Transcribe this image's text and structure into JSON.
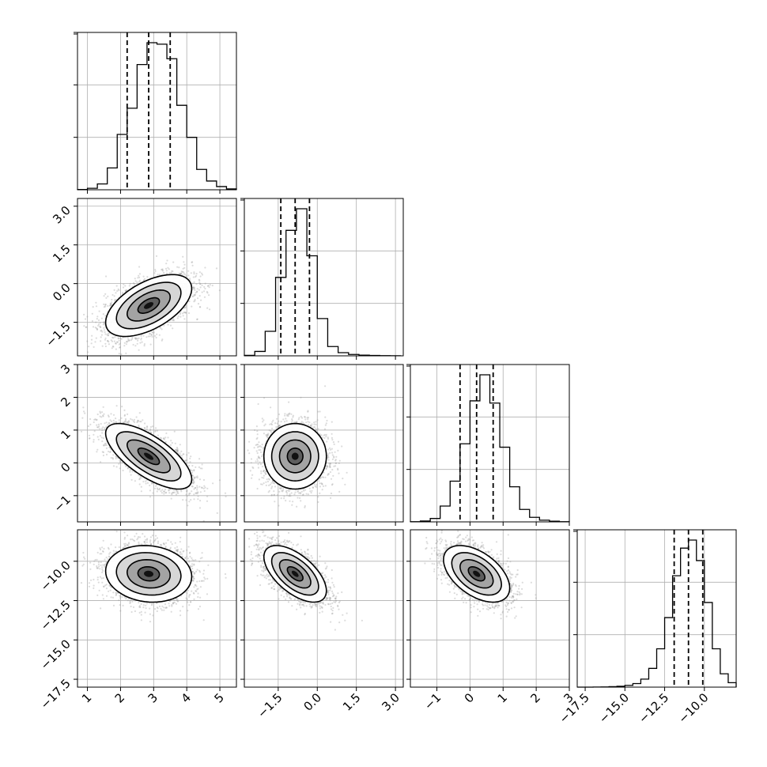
{
  "chart_data": {
    "type": "corner",
    "title": "",
    "n_params": 4,
    "params": [
      {
        "label": "",
        "lim": [
          0.7,
          5.5
        ],
        "ticks": [
          1,
          2,
          3,
          4,
          5
        ],
        "tick_labels": [
          "1",
          "2",
          "3",
          "4",
          "5"
        ],
        "quantiles": [
          2.2,
          2.85,
          3.5
        ],
        "hist_bins": [
          0.7,
          1.0,
          1.3,
          1.6,
          1.9,
          2.2,
          2.5,
          2.8,
          3.1,
          3.4,
          3.7,
          4.0,
          4.3,
          4.6,
          4.9,
          5.2,
          5.5
        ],
        "hist_counts": [
          2,
          10,
          40,
          150,
          380,
          560,
          860,
          1010,
          1000,
          900,
          580,
          360,
          140,
          60,
          22,
          6
        ]
      },
      {
        "label": "",
        "lim": [
          -2.8,
          3.3
        ],
        "ticks": [
          -1.5,
          0.0,
          1.5,
          3.0
        ],
        "tick_labels": [
          "−1.5",
          "0.0",
          "1.5",
          "3.0"
        ],
        "quantiles": [
          -1.4,
          -0.85,
          -0.3
        ],
        "hist_bins": [
          -2.8,
          -2.4,
          -2.0,
          -1.6,
          -1.2,
          -0.8,
          -0.4,
          0.0,
          0.4,
          0.8,
          1.2,
          1.6,
          2.0,
          2.4,
          2.8,
          3.2
        ],
        "hist_counts": [
          5,
          45,
          250,
          800,
          1280,
          1500,
          1020,
          380,
          95,
          32,
          14,
          7,
          4,
          2,
          1
        ]
      },
      {
        "label": "",
        "lim": [
          -1.8,
          3.0
        ],
        "ticks": [
          -1,
          0,
          1,
          2,
          3
        ],
        "tick_labels": [
          "−1",
          "0",
          "1",
          "2",
          "3"
        ],
        "quantiles": [
          -0.3,
          0.2,
          0.7
        ],
        "hist_bins": [
          -1.8,
          -1.5,
          -1.2,
          -0.9,
          -0.6,
          -0.3,
          0.0,
          0.3,
          0.6,
          0.9,
          1.2,
          1.5,
          1.8,
          2.1,
          2.4,
          2.7,
          3.0
        ],
        "hist_counts": [
          2,
          8,
          30,
          140,
          360,
          690,
          1070,
          1300,
          1050,
          660,
          310,
          110,
          40,
          15,
          6,
          2
        ]
      },
      {
        "label": "",
        "lim": [
          -18.0,
          -8.0
        ],
        "ticks": [
          -17.5,
          -15.0,
          -12.5,
          -10.0
        ],
        "tick_labels": [
          "−17.5",
          "−15.0",
          "−12.5",
          "−10.0"
        ],
        "quantiles": [
          -11.9,
          -11.0,
          -10.1
        ],
        "hist_bins": [
          -18.0,
          -17.5,
          -17.0,
          -16.5,
          -16.0,
          -15.5,
          -15.0,
          -14.5,
          -14.0,
          -13.5,
          -13.0,
          -12.5,
          -12.0,
          -11.5,
          -11.0,
          -10.5,
          -10.0,
          -9.5,
          -9.0,
          -8.5,
          -8.0
        ],
        "hist_counts": [
          0,
          0,
          1,
          2,
          5,
          10,
          20,
          40,
          90,
          210,
          430,
          780,
          1250,
          1560,
          1650,
          1420,
          950,
          430,
          150,
          50
        ]
      }
    ],
    "left_tick_rows": [
      {
        "row": 1,
        "ticks": [
          -1.5,
          0.0,
          1.5,
          3.0
        ],
        "tick_labels": [
          "−1.5",
          "0.0",
          "1.5",
          "3.0"
        ]
      },
      {
        "row": 2,
        "ticks": [
          -1,
          0,
          1,
          2,
          3
        ],
        "tick_labels": [
          "−1",
          "0",
          "1",
          "2",
          "3"
        ]
      },
      {
        "row": 3,
        "ticks": [
          -17.5,
          -15.0,
          -12.5,
          -10.0
        ],
        "tick_labels": [
          "−17.5",
          "−15.0",
          "−12.5",
          "−10.0"
        ]
      }
    ],
    "pairs": [
      {
        "x_param": 0,
        "y_param": 1,
        "mean": [
          2.85,
          -0.85
        ],
        "sd": [
          0.65,
          0.6
        ],
        "corr": 0.55,
        "n_points": 2800
      },
      {
        "x_param": 0,
        "y_param": 2,
        "mean": [
          2.85,
          0.2
        ],
        "sd": [
          0.65,
          0.5
        ],
        "corr": -0.7,
        "n_points": 2800
      },
      {
        "x_param": 1,
        "y_param": 2,
        "mean": [
          -0.85,
          0.2
        ],
        "sd": [
          0.6,
          0.5
        ],
        "corr": 0.0,
        "n_points": 2800
      },
      {
        "x_param": 0,
        "y_param": 3,
        "mean": [
          2.85,
          -10.8
        ],
        "sd": [
          0.65,
          0.9
        ],
        "corr": -0.1,
        "n_points": 2800
      },
      {
        "x_param": 1,
        "y_param": 3,
        "mean": [
          -0.85,
          -10.8
        ],
        "sd": [
          0.6,
          0.9
        ],
        "corr": -0.6,
        "n_points": 2800
      },
      {
        "x_param": 2,
        "y_param": 3,
        "mean": [
          0.2,
          -10.8
        ],
        "sd": [
          0.5,
          0.9
        ],
        "corr": -0.5,
        "n_points": 2800
      }
    ],
    "contour_levels_sigma": [
      0.5,
      1.0,
      1.5,
      2.0
    ],
    "grid": true,
    "legend": "none"
  }
}
